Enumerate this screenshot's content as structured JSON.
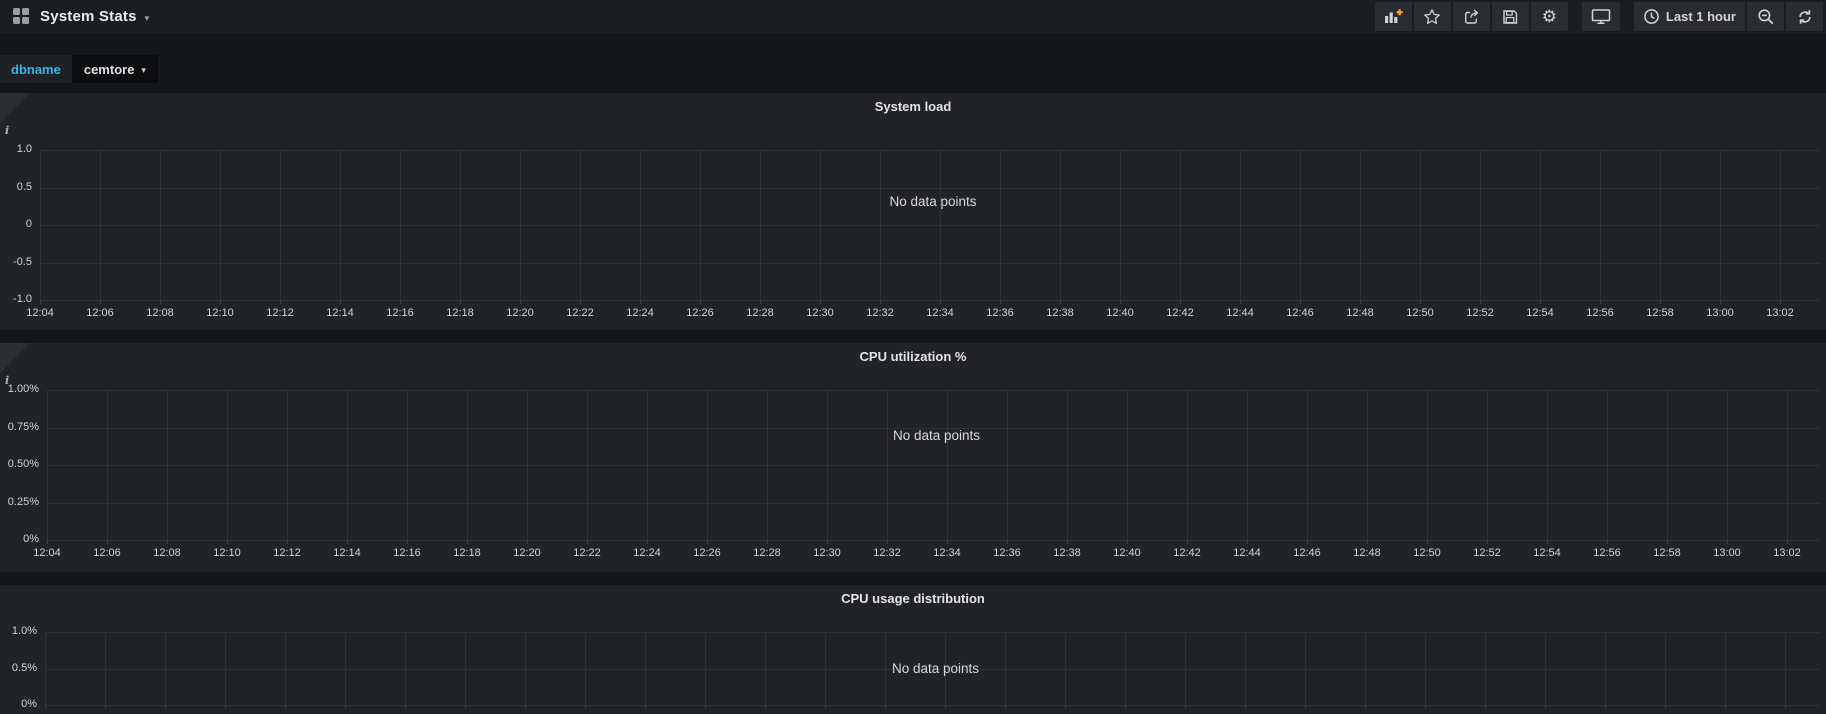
{
  "navbar": {
    "logo_icon": "grid-logo-icon",
    "title": "System Stats",
    "title_caret_icon": "caret-down-icon",
    "toolbar": {
      "buttons": [
        {
          "name": "add-panel",
          "icon": "add-panel-icon"
        },
        {
          "name": "star",
          "icon": "star-icon"
        },
        {
          "name": "share",
          "icon": "share-icon"
        },
        {
          "name": "save",
          "icon": "save-icon"
        },
        {
          "name": "settings",
          "icon": "gear-icon"
        },
        {
          "name": "tv-mode",
          "icon": "monitor-icon"
        },
        {
          "name": "time-range",
          "icon": "clock-icon",
          "label": "Last 1 hour"
        },
        {
          "name": "zoom-out",
          "icon": "zoom-out-icon"
        },
        {
          "name": "refresh",
          "icon": "refresh-icon"
        }
      ]
    },
    "time_range": "Last 1 hour"
  },
  "variables": [
    {
      "label": "dbname",
      "value": "cemtore",
      "caret_icon": "caret-down-icon"
    }
  ],
  "colors": {
    "accent_teal": "#33b5e5",
    "accent_orange": "#f79b2d",
    "page_bg": "#141619",
    "panel_bg": "#212327",
    "gridline": "#2f3135"
  },
  "panels": [
    {
      "title": "System load",
      "info_icon": "info-icon",
      "chart_data": {
        "type": "line",
        "title": "System load",
        "series": [],
        "message": "No data points",
        "grid": true,
        "ylim": [
          -1.0,
          1.0
        ],
        "y_ticks": [
          "1.0",
          "0.5",
          "0",
          "-0.5",
          "-1.0"
        ],
        "x_ticks": [
          "12:04",
          "12:06",
          "12:08",
          "12:10",
          "12:12",
          "12:14",
          "12:16",
          "12:18",
          "12:20",
          "12:22",
          "12:24",
          "12:26",
          "12:28",
          "12:30",
          "12:32",
          "12:34",
          "12:36",
          "12:38",
          "12:40",
          "12:42",
          "12:44",
          "12:46",
          "12:48",
          "12:50",
          "12:52",
          "12:54",
          "12:56",
          "12:58",
          "13:00",
          "13:02"
        ]
      }
    },
    {
      "title": "CPU utilization %",
      "info_icon": "info-icon",
      "chart_data": {
        "type": "line",
        "title": "CPU utilization %",
        "series": [],
        "message": "No data points",
        "grid": true,
        "ylim": [
          0,
          1.0
        ],
        "y_ticks": [
          "1.00%",
          "0.75%",
          "0.50%",
          "0.25%",
          "0%"
        ],
        "x_ticks": [
          "12:04",
          "12:06",
          "12:08",
          "12:10",
          "12:12",
          "12:14",
          "12:16",
          "12:18",
          "12:20",
          "12:22",
          "12:24",
          "12:26",
          "12:28",
          "12:30",
          "12:32",
          "12:34",
          "12:36",
          "12:38",
          "12:40",
          "12:42",
          "12:44",
          "12:46",
          "12:48",
          "12:50",
          "12:52",
          "12:54",
          "12:56",
          "12:58",
          "13:00",
          "13:02"
        ]
      }
    },
    {
      "title": "CPU usage distribution",
      "chart_data": {
        "type": "line",
        "title": "CPU usage distribution",
        "series": [],
        "message": "No data points",
        "grid": true,
        "ylim": [
          0,
          1.0
        ],
        "y_ticks": [
          "1.0%",
          "0.5%",
          "0%"
        ],
        "x_ticks": []
      }
    }
  ]
}
